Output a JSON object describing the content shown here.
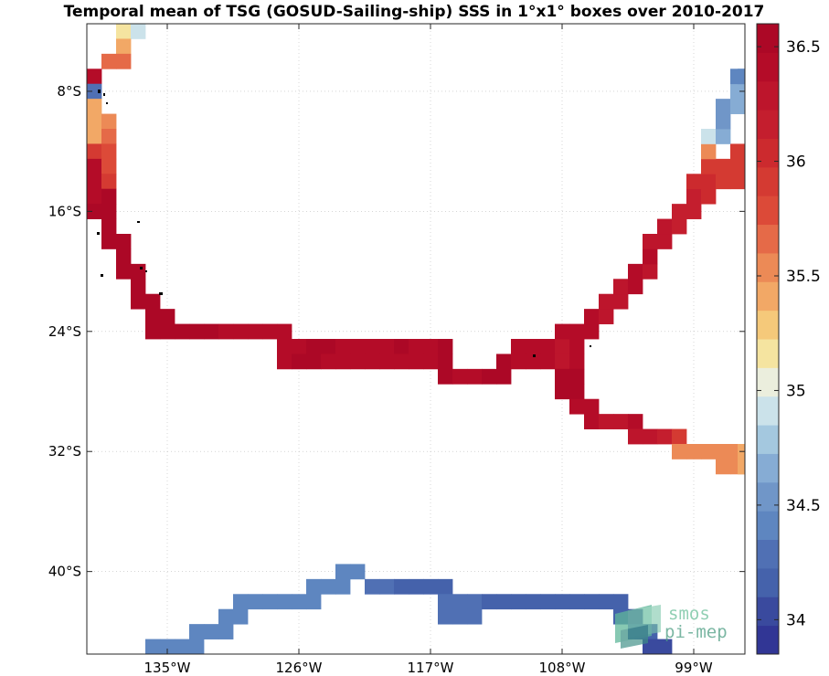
{
  "chart_data": {
    "type": "heatmap",
    "title": "Temporal mean of TSG (GOSUD-Sailing-ship) SSS in 1°x1° boxes over 2010-2017",
    "xlabel": "",
    "ylabel": "",
    "xlim": [
      -140.5,
      -95.5
    ],
    "ylim": [
      -45.5,
      -3.5
    ],
    "grid": true,
    "x_ticks": [
      {
        "value": -135,
        "label": "135°W"
      },
      {
        "value": -126,
        "label": "126°W"
      },
      {
        "value": -117,
        "label": "117°W"
      },
      {
        "value": -108,
        "label": "108°W"
      },
      {
        "value": -99,
        "label": "99°W"
      }
    ],
    "y_ticks": [
      {
        "value": -8,
        "label": "8°S"
      },
      {
        "value": -16,
        "label": "16°S"
      },
      {
        "value": -24,
        "label": "24°S"
      },
      {
        "value": -32,
        "label": "32°S"
      },
      {
        "value": -40,
        "label": "40°S"
      }
    ],
    "colorbar": {
      "min": 33.85,
      "max": 36.6,
      "step": 0.125,
      "colors": [
        "#313695",
        "#3a4a9e",
        "#4562ab",
        "#5070b4",
        "#5e86c0",
        "#7096c8",
        "#86acd4",
        "#a4c8df",
        "#cbe2ea",
        "#ebeedd",
        "#f5e4a0",
        "#f5c97a",
        "#f2a866",
        "#ec8a56",
        "#e56a48",
        "#dc4a38",
        "#d43a32",
        "#cc2a2e",
        "#c41e2e",
        "#bd152c",
        "#b40c28",
        "#ac0826"
      ],
      "ticks": [
        {
          "value": 34,
          "label": "34"
        },
        {
          "value": 34.5,
          "label": "34.5"
        },
        {
          "value": 35,
          "label": "35"
        },
        {
          "value": 35.5,
          "label": "35.5"
        },
        {
          "value": 36,
          "label": "36"
        },
        {
          "value": 36.5,
          "label": "36.5"
        }
      ]
    },
    "cells": [
      {
        "lon": -138,
        "lat": -4,
        "v": 35.2
      },
      {
        "lon": -137,
        "lat": -4,
        "v": 34.9
      },
      {
        "lon": -138,
        "lat": -5,
        "v": 35.45
      },
      {
        "lon": -139,
        "lat": -6,
        "v": 35.65
      },
      {
        "lon": -138,
        "lat": -6,
        "v": 35.65
      },
      {
        "lon": -140,
        "lat": -7,
        "v": 36.45
      },
      {
        "lon": -140,
        "lat": -8,
        "v": 34.3
      },
      {
        "lon": -140,
        "lat": -9,
        "v": 35.45
      },
      {
        "lon": -140,
        "lat": -10,
        "v": 35.4
      },
      {
        "lon": -139,
        "lat": -10,
        "v": 35.5
      },
      {
        "lon": -140,
        "lat": -11,
        "v": 35.45
      },
      {
        "lon": -139,
        "lat": -11,
        "v": 35.7
      },
      {
        "lon": -140,
        "lat": -12,
        "v": 35.95
      },
      {
        "lon": -139,
        "lat": -12,
        "v": 35.8
      },
      {
        "lon": -140,
        "lat": -13,
        "v": 36.35
      },
      {
        "lon": -139,
        "lat": -13,
        "v": 35.8
      },
      {
        "lon": -140,
        "lat": -14,
        "v": 36.4
      },
      {
        "lon": -139,
        "lat": -14,
        "v": 35.95
      },
      {
        "lon": -140,
        "lat": -15,
        "v": 36.45
      },
      {
        "lon": -139,
        "lat": -15,
        "v": 36.5
      },
      {
        "lon": -140,
        "lat": -16,
        "v": 36.5
      },
      {
        "lon": -139,
        "lat": -16,
        "v": 36.5
      },
      {
        "lon": -139,
        "lat": -17,
        "v": 36.55
      },
      {
        "lon": -139,
        "lat": -18,
        "v": 36.55
      },
      {
        "lon": -138,
        "lat": -18,
        "v": 36.55
      },
      {
        "lon": -138,
        "lat": -19,
        "v": 36.5
      },
      {
        "lon": -138,
        "lat": -20,
        "v": 36.5
      },
      {
        "lon": -137,
        "lat": -20,
        "v": 36.5
      },
      {
        "lon": -137,
        "lat": -21,
        "v": 36.5
      },
      {
        "lon": -137,
        "lat": -22,
        "v": 36.5
      },
      {
        "lon": -136,
        "lat": -22,
        "v": 36.5
      },
      {
        "lon": -136,
        "lat": -23,
        "v": 36.5
      },
      {
        "lon": -135,
        "lat": -23,
        "v": 36.5
      },
      {
        "lon": -136,
        "lat": -24,
        "v": 36.5
      },
      {
        "lon": -135,
        "lat": -24,
        "v": 36.5
      },
      {
        "lon": -134,
        "lat": -24,
        "v": 36.5
      },
      {
        "lon": -133,
        "lat": -24,
        "v": 36.55
      },
      {
        "lon": -132,
        "lat": -24,
        "v": 36.5
      },
      {
        "lon": -131,
        "lat": -24,
        "v": 36.45
      },
      {
        "lon": -130,
        "lat": -24,
        "v": 36.4
      },
      {
        "lon": -129,
        "lat": -24,
        "v": 36.45
      },
      {
        "lon": -128,
        "lat": -24,
        "v": 36.45
      },
      {
        "lon": -127,
        "lat": -24,
        "v": 36.4
      },
      {
        "lon": -127,
        "lat": -25,
        "v": 36.45
      },
      {
        "lon": -126,
        "lat": -25,
        "v": 36.45
      },
      {
        "lon": -125,
        "lat": -25,
        "v": 36.5
      },
      {
        "lon": -124,
        "lat": -25,
        "v": 36.5
      },
      {
        "lon": -123,
        "lat": -25,
        "v": 36.45
      },
      {
        "lon": -122,
        "lat": -25,
        "v": 36.45
      },
      {
        "lon": -121,
        "lat": -25,
        "v": 36.4
      },
      {
        "lon": -120,
        "lat": -25,
        "v": 36.45
      },
      {
        "lon": -119,
        "lat": -25,
        "v": 36.5
      },
      {
        "lon": -118,
        "lat": -25,
        "v": 36.45
      },
      {
        "lon": -117,
        "lat": -25,
        "v": 36.35
      },
      {
        "lon": -116,
        "lat": -25,
        "v": 36.5
      },
      {
        "lon": -127,
        "lat": -26,
        "v": 36.45
      },
      {
        "lon": -126,
        "lat": -26,
        "v": 36.5
      },
      {
        "lon": -125,
        "lat": -26,
        "v": 36.5
      },
      {
        "lon": -124,
        "lat": -26,
        "v": 36.45
      },
      {
        "lon": -123,
        "lat": -26,
        "v": 36.4
      },
      {
        "lon": -122,
        "lat": -26,
        "v": 36.45
      },
      {
        "lon": -121,
        "lat": -26,
        "v": 36.4
      },
      {
        "lon": -120,
        "lat": -26,
        "v": 36.45
      },
      {
        "lon": -119,
        "lat": -26,
        "v": 36.4
      },
      {
        "lon": -118,
        "lat": -26,
        "v": 36.45
      },
      {
        "lon": -117,
        "lat": -26,
        "v": 36.45
      },
      {
        "lon": -116,
        "lat": -26,
        "v": 36.5
      },
      {
        "lon": -116,
        "lat": -27,
        "v": 36.5
      },
      {
        "lon": -115,
        "lat": -27,
        "v": 36.45
      },
      {
        "lon": -114,
        "lat": -27,
        "v": 36.45
      },
      {
        "lon": -113,
        "lat": -27,
        "v": 36.5
      },
      {
        "lon": -112,
        "lat": -27,
        "v": 36.5
      },
      {
        "lon": -112,
        "lat": -26,
        "v": 36.5
      },
      {
        "lon": -111,
        "lat": -25,
        "v": 36.4
      },
      {
        "lon": -110,
        "lat": -25,
        "v": 36.4
      },
      {
        "lon": -109,
        "lat": -25,
        "v": 36.45
      },
      {
        "lon": -108,
        "lat": -25,
        "v": 36.3
      },
      {
        "lon": -107,
        "lat": -25,
        "v": 36.35
      },
      {
        "lon": -111,
        "lat": -26,
        "v": 36.4
      },
      {
        "lon": -110,
        "lat": -26,
        "v": 36.4
      },
      {
        "lon": -109,
        "lat": -26,
        "v": 36.45
      },
      {
        "lon": -108,
        "lat": -26,
        "v": 36.3
      },
      {
        "lon": -107,
        "lat": -26,
        "v": 36.35
      },
      {
        "lon": -108,
        "lat": -24,
        "v": 36.45
      },
      {
        "lon": -107,
        "lat": -24,
        "v": 36.4
      },
      {
        "lon": -106,
        "lat": -24,
        "v": 36.4
      },
      {
        "lon": -106,
        "lat": -23,
        "v": 36.35
      },
      {
        "lon": -105,
        "lat": -23,
        "v": 36.3
      },
      {
        "lon": -105,
        "lat": -22,
        "v": 36.3
      },
      {
        "lon": -104,
        "lat": -22,
        "v": 36.3
      },
      {
        "lon": -104,
        "lat": -21,
        "v": 36.3
      },
      {
        "lon": -103,
        "lat": -21,
        "v": 36.35
      },
      {
        "lon": -103,
        "lat": -20,
        "v": 36.35
      },
      {
        "lon": -102,
        "lat": -20,
        "v": 36.3
      },
      {
        "lon": -102,
        "lat": -19,
        "v": 36.35
      },
      {
        "lon": -102,
        "lat": -18,
        "v": 36.3
      },
      {
        "lon": -101,
        "lat": -18,
        "v": 36.3
      },
      {
        "lon": -101,
        "lat": -17,
        "v": 36.25
      },
      {
        "lon": -100,
        "lat": -17,
        "v": 36.2
      },
      {
        "lon": -100,
        "lat": -16,
        "v": 36.2
      },
      {
        "lon": -99,
        "lat": -16,
        "v": 36.15
      },
      {
        "lon": -99,
        "lat": -15,
        "v": 36.1
      },
      {
        "lon": -98,
        "lat": -15,
        "v": 36.05
      },
      {
        "lon": -99,
        "lat": -14,
        "v": 36.0
      },
      {
        "lon": -98,
        "lat": -14,
        "v": 36.0
      },
      {
        "lon": -97,
        "lat": -14,
        "v": 35.95
      },
      {
        "lon": -96,
        "lat": -14,
        "v": 35.95
      },
      {
        "lon": -98,
        "lat": -13,
        "v": 35.85
      },
      {
        "lon": -97,
        "lat": -13,
        "v": 35.95
      },
      {
        "lon": -96,
        "lat": -13,
        "v": 35.95
      },
      {
        "lon": -98,
        "lat": -12,
        "v": 35.5
      },
      {
        "lon": -96,
        "lat": -12,
        "v": 35.9
      },
      {
        "lon": -98,
        "lat": -11,
        "v": 34.85
      },
      {
        "lon": -97,
        "lat": -11,
        "v": 34.65
      },
      {
        "lon": -97,
        "lat": -10,
        "v": 34.55
      },
      {
        "lon": -97,
        "lat": -9,
        "v": 34.55
      },
      {
        "lon": -96,
        "lat": -9,
        "v": 34.65
      },
      {
        "lon": -96,
        "lat": -8,
        "v": 34.65
      },
      {
        "lon": -95.5,
        "lat": -8,
        "v": 34.7
      },
      {
        "lon": -96,
        "lat": -7,
        "v": 34.35
      },
      {
        "lon": -95.5,
        "lat": -7,
        "v": 34.35
      },
      {
        "lon": -108,
        "lat": -27,
        "v": 36.5
      },
      {
        "lon": -107,
        "lat": -27,
        "v": 36.5
      },
      {
        "lon": -108,
        "lat": -28,
        "v": 36.5
      },
      {
        "lon": -107,
        "lat": -28,
        "v": 36.5
      },
      {
        "lon": -107,
        "lat": -29,
        "v": 36.45
      },
      {
        "lon": -106,
        "lat": -29,
        "v": 36.45
      },
      {
        "lon": -106,
        "lat": -30,
        "v": 36.35
      },
      {
        "lon": -105,
        "lat": -30,
        "v": 36.3
      },
      {
        "lon": -104,
        "lat": -30,
        "v": 36.3
      },
      {
        "lon": -103,
        "lat": -30,
        "v": 36.35
      },
      {
        "lon": -103,
        "lat": -31,
        "v": 36.3
      },
      {
        "lon": -102,
        "lat": -31,
        "v": 36.3
      },
      {
        "lon": -101,
        "lat": -31,
        "v": 36.2
      },
      {
        "lon": -100,
        "lat": -31,
        "v": 35.85
      },
      {
        "lon": -100,
        "lat": -32,
        "v": 35.55
      },
      {
        "lon": -99,
        "lat": -32,
        "v": 35.5
      },
      {
        "lon": -98,
        "lat": -32,
        "v": 35.55
      },
      {
        "lon": -97,
        "lat": -32,
        "v": 35.5
      },
      {
        "lon": -96,
        "lat": -32,
        "v": 35.5
      },
      {
        "lon": -95.5,
        "lat": -32,
        "v": 35.45
      },
      {
        "lon": -97,
        "lat": -33,
        "v": 35.55
      },
      {
        "lon": -96,
        "lat": -33,
        "v": 35.55
      },
      {
        "lon": -95.5,
        "lat": -33,
        "v": 35.45
      },
      {
        "lon": -123,
        "lat": -40,
        "v": 34.35
      },
      {
        "lon": -122,
        "lat": -40,
        "v": 34.35
      },
      {
        "lon": -125,
        "lat": -41,
        "v": 34.35
      },
      {
        "lon": -124,
        "lat": -41,
        "v": 34.35
      },
      {
        "lon": -123,
        "lat": -41,
        "v": 34.35
      },
      {
        "lon": -121,
        "lat": -41,
        "v": 34.3
      },
      {
        "lon": -120,
        "lat": -41,
        "v": 34.3
      },
      {
        "lon": -119,
        "lat": -41,
        "v": 34.2
      },
      {
        "lon": -118,
        "lat": -41,
        "v": 34.2
      },
      {
        "lon": -117,
        "lat": -41,
        "v": 34.2
      },
      {
        "lon": -116,
        "lat": -41,
        "v": 34.2
      },
      {
        "lon": -130,
        "lat": -42,
        "v": 34.4
      },
      {
        "lon": -129,
        "lat": -42,
        "v": 34.4
      },
      {
        "lon": -128,
        "lat": -42,
        "v": 34.4
      },
      {
        "lon": -127,
        "lat": -42,
        "v": 34.45
      },
      {
        "lon": -126,
        "lat": -42,
        "v": 34.4
      },
      {
        "lon": -125,
        "lat": -42,
        "v": 34.4
      },
      {
        "lon": -116,
        "lat": -42,
        "v": 34.25
      },
      {
        "lon": -115,
        "lat": -42,
        "v": 34.25
      },
      {
        "lon": -114,
        "lat": -42,
        "v": 34.25
      },
      {
        "lon": -113,
        "lat": -42,
        "v": 34.2
      },
      {
        "lon": -112,
        "lat": -42,
        "v": 34.2
      },
      {
        "lon": -111,
        "lat": -42,
        "v": 34.15
      },
      {
        "lon": -110,
        "lat": -42,
        "v": 34.15
      },
      {
        "lon": -109,
        "lat": -42,
        "v": 34.15
      },
      {
        "lon": -108,
        "lat": -42,
        "v": 34.15
      },
      {
        "lon": -107,
        "lat": -42,
        "v": 34.1
      },
      {
        "lon": -106,
        "lat": -42,
        "v": 34.1
      },
      {
        "lon": -105,
        "lat": -42,
        "v": 34.1
      },
      {
        "lon": -104,
        "lat": -42,
        "v": 34.1
      },
      {
        "lon": -131,
        "lat": -43,
        "v": 34.4
      },
      {
        "lon": -130,
        "lat": -43,
        "v": 34.4
      },
      {
        "lon": -116,
        "lat": -43,
        "v": 34.25
      },
      {
        "lon": -115,
        "lat": -43,
        "v": 34.25
      },
      {
        "lon": -114,
        "lat": -43,
        "v": 34.25
      },
      {
        "lon": -104,
        "lat": -43,
        "v": 34.1
      },
      {
        "lon": -103,
        "lat": -43,
        "v": 34.05
      },
      {
        "lon": -133,
        "lat": -44,
        "v": 34.4
      },
      {
        "lon": -132,
        "lat": -44,
        "v": 34.4
      },
      {
        "lon": -131,
        "lat": -44,
        "v": 34.45
      },
      {
        "lon": -103,
        "lat": -44,
        "v": 34.1
      },
      {
        "lon": -102,
        "lat": -44,
        "v": 34.1
      },
      {
        "lon": -136,
        "lat": -45,
        "v": 34.45
      },
      {
        "lon": -135,
        "lat": -45,
        "v": 34.4
      },
      {
        "lon": -134,
        "lat": -45,
        "v": 34.4
      },
      {
        "lon": -133,
        "lat": -45,
        "v": 34.4
      },
      {
        "lon": -102,
        "lat": -45,
        "v": 34.0
      },
      {
        "lon": -101,
        "lat": -45,
        "v": 34.0
      }
    ]
  },
  "logo": {
    "line1": "smos",
    "line2": "pi-mep"
  }
}
